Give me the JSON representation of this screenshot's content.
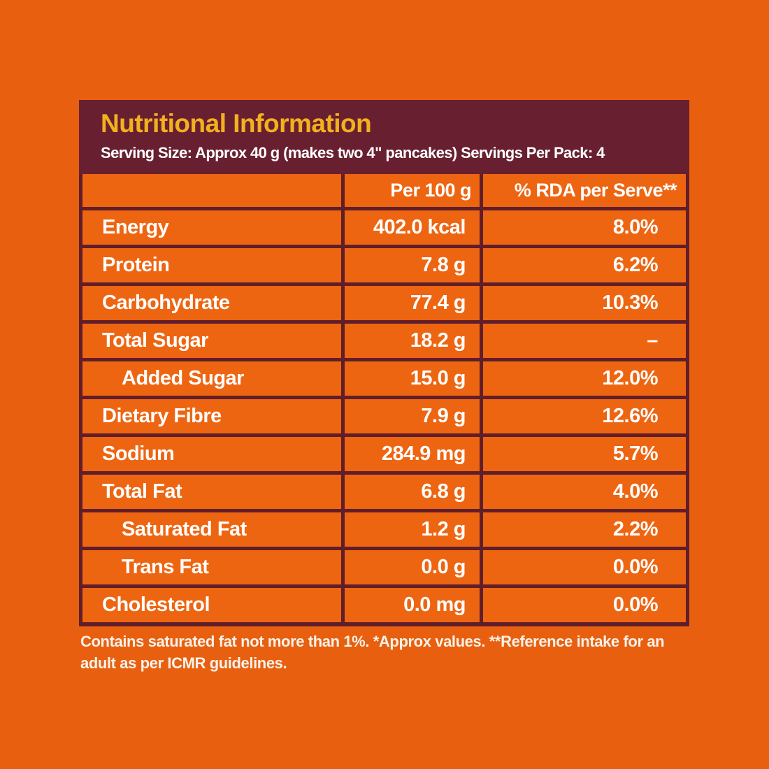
{
  "colors": {
    "page_background": "#E8600F",
    "panel_background": "#682031",
    "table_border": "#5F1E29",
    "cell_background": "#EE6511",
    "title_text": "#F2B11E",
    "body_text": "#FFFFFF",
    "footnote_text": "#F9F2EA"
  },
  "panel": {
    "title": "Nutritional Information",
    "serving_info": "Serving Size: Approx 40 g (makes two 4\" pancakes) Servings Per Pack: 4"
  },
  "table": {
    "columns": [
      "",
      "Per 100 g",
      "% RDA per Serve**"
    ],
    "rows": [
      {
        "label": "Energy",
        "indent": false,
        "per_100g": "402.0 kcal",
        "rda_per_serve": "8.0%"
      },
      {
        "label": "Protein",
        "indent": false,
        "per_100g": "7.8 g",
        "rda_per_serve": "6.2%"
      },
      {
        "label": "Carbohydrate",
        "indent": false,
        "per_100g": "77.4 g",
        "rda_per_serve": "10.3%"
      },
      {
        "label": "Total Sugar",
        "indent": false,
        "per_100g": "18.2 g",
        "rda_per_serve": "–"
      },
      {
        "label": "Added Sugar",
        "indent": true,
        "per_100g": "15.0 g",
        "rda_per_serve": "12.0%"
      },
      {
        "label": "Dietary Fibre",
        "indent": false,
        "per_100g": "7.9 g",
        "rda_per_serve": "12.6%"
      },
      {
        "label": "Sodium",
        "indent": false,
        "per_100g": "284.9 mg",
        "rda_per_serve": "5.7%"
      },
      {
        "label": "Total Fat",
        "indent": false,
        "per_100g": "6.8 g",
        "rda_per_serve": "4.0%"
      },
      {
        "label": "Saturated Fat",
        "indent": true,
        "per_100g": "1.2 g",
        "rda_per_serve": "2.2%"
      },
      {
        "label": "Trans Fat",
        "indent": true,
        "per_100g": "0.0 g",
        "rda_per_serve": "0.0%"
      },
      {
        "label": "Cholesterol",
        "indent": false,
        "per_100g": "0.0 mg",
        "rda_per_serve": "0.0%"
      }
    ]
  },
  "footnote": "Contains saturated fat not more than 1%. *Approx values. **Reference intake for an adult as per ICMR guidelines."
}
